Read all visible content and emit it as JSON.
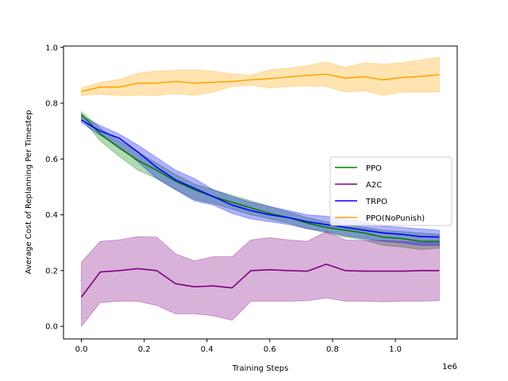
{
  "chart_data": {
    "type": "line",
    "xlabel": "Training Steps",
    "ylabel": "Average Cost of Replanning Per Timestep",
    "x_offset_label": "1e6",
    "xlim": [
      -0.057,
      1.197
    ],
    "ylim": [
      -0.045,
      1.005
    ],
    "xticks": [
      0.0,
      0.2,
      0.4,
      0.6,
      0.8,
      1.0
    ],
    "yticks": [
      0.0,
      0.2,
      0.4,
      0.6,
      0.8,
      1.0
    ],
    "x_tick_labels": [
      "0.0",
      "0.2",
      "0.4",
      "0.6",
      "0.8",
      "1.0"
    ],
    "y_tick_labels": [
      "0.0",
      "0.2",
      "0.4",
      "0.6",
      "0.8",
      "1.0"
    ],
    "legend_position": "center-right",
    "grid": false,
    "x": [
      0.0,
      0.06,
      0.12,
      0.18,
      0.24,
      0.3,
      0.36,
      0.42,
      0.48,
      0.54,
      0.6,
      0.66,
      0.72,
      0.78,
      0.84,
      0.9,
      0.96,
      1.02,
      1.08,
      1.14
    ],
    "series": [
      {
        "name": "PPO",
        "color": "#008000",
        "values": [
          0.76,
          0.69,
          0.64,
          0.595,
          0.56,
          0.52,
          0.49,
          0.465,
          0.445,
          0.425,
          0.405,
          0.39,
          0.37,
          0.355,
          0.345,
          0.335,
          0.32,
          0.315,
          0.305,
          0.305
        ],
        "lower": [
          0.745,
          0.665,
          0.61,
          0.56,
          0.53,
          0.49,
          0.455,
          0.44,
          0.42,
          0.4,
          0.385,
          0.37,
          0.35,
          0.335,
          0.32,
          0.31,
          0.29,
          0.285,
          0.275,
          0.28
        ],
        "upper": [
          0.77,
          0.71,
          0.665,
          0.625,
          0.585,
          0.545,
          0.51,
          0.49,
          0.47,
          0.45,
          0.43,
          0.41,
          0.39,
          0.375,
          0.365,
          0.355,
          0.345,
          0.34,
          0.335,
          0.33
        ]
      },
      {
        "name": "A2C",
        "color": "#800080",
        "values": [
          0.105,
          0.195,
          0.2,
          0.207,
          0.2,
          0.153,
          0.142,
          0.145,
          0.138,
          0.2,
          0.203,
          0.2,
          0.198,
          0.223,
          0.2,
          0.198,
          0.198,
          0.198,
          0.2,
          0.2
        ],
        "lower": [
          0.0,
          0.085,
          0.09,
          0.09,
          0.075,
          0.045,
          0.045,
          0.038,
          0.022,
          0.09,
          0.09,
          0.09,
          0.092,
          0.102,
          0.09,
          0.09,
          0.088,
          0.09,
          0.09,
          0.092
        ],
        "upper": [
          0.23,
          0.305,
          0.31,
          0.322,
          0.32,
          0.26,
          0.235,
          0.25,
          0.25,
          0.31,
          0.318,
          0.31,
          0.305,
          0.34,
          0.31,
          0.308,
          0.308,
          0.305,
          0.3,
          0.305
        ]
      },
      {
        "name": "TRPO",
        "color": "#0000ff",
        "values": [
          0.74,
          0.7,
          0.675,
          0.625,
          0.57,
          0.525,
          0.495,
          0.465,
          0.435,
          0.415,
          0.4,
          0.39,
          0.375,
          0.365,
          0.355,
          0.345,
          0.335,
          0.33,
          0.322,
          0.32
        ],
        "lower": [
          0.73,
          0.685,
          0.645,
          0.59,
          0.53,
          0.49,
          0.45,
          0.435,
          0.405,
          0.385,
          0.375,
          0.365,
          0.35,
          0.34,
          0.325,
          0.315,
          0.305,
          0.3,
          0.29,
          0.29
        ],
        "upper": [
          0.755,
          0.72,
          0.69,
          0.65,
          0.605,
          0.56,
          0.53,
          0.49,
          0.465,
          0.445,
          0.43,
          0.415,
          0.4,
          0.395,
          0.385,
          0.375,
          0.36,
          0.355,
          0.35,
          0.345
        ]
      },
      {
        "name": "PPO(NoPunish)",
        "color": "#ffa500",
        "values": [
          0.842,
          0.858,
          0.858,
          0.872,
          0.872,
          0.878,
          0.872,
          0.875,
          0.878,
          0.884,
          0.888,
          0.894,
          0.9,
          0.904,
          0.89,
          0.895,
          0.884,
          0.892,
          0.896,
          0.902
        ],
        "lower": [
          0.828,
          0.832,
          0.828,
          0.828,
          0.828,
          0.835,
          0.828,
          0.84,
          0.86,
          0.865,
          0.855,
          0.86,
          0.862,
          0.86,
          0.84,
          0.845,
          0.828,
          0.84,
          0.84,
          0.84
        ],
        "upper": [
          0.855,
          0.875,
          0.885,
          0.908,
          0.915,
          0.918,
          0.92,
          0.915,
          0.905,
          0.9,
          0.92,
          0.925,
          0.935,
          0.948,
          0.928,
          0.945,
          0.94,
          0.945,
          0.955,
          0.965
        ]
      }
    ]
  }
}
